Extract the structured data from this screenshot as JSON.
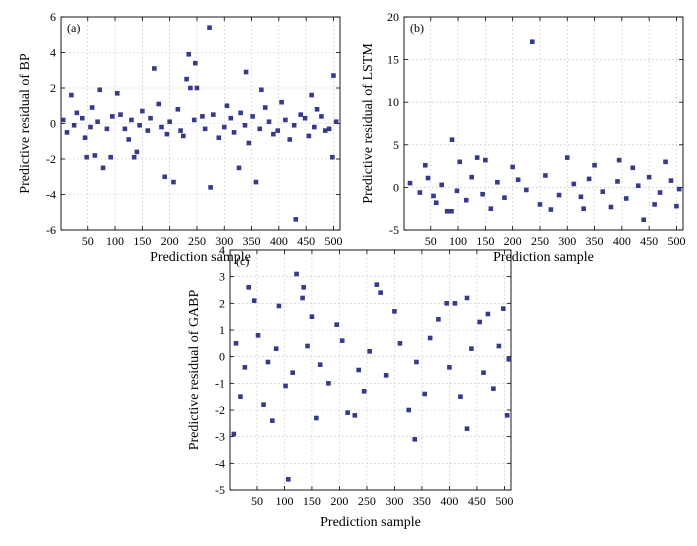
{
  "marker_color": "#353B8A",
  "chart_data": [
    {
      "id": "a",
      "type": "scatter",
      "panel_label": "(a)",
      "title": "",
      "xlabel": "Prediction sample",
      "ylabel": "Predictive residual of BP",
      "xlim": [
        1,
        512
      ],
      "ylim": [
        -6,
        6
      ],
      "xticks": [
        50,
        100,
        150,
        200,
        250,
        300,
        350,
        400,
        450,
        500
      ],
      "yticks": [
        -6,
        -4,
        -2,
        0,
        2,
        4,
        6
      ],
      "grid": true,
      "series": [
        {
          "name": "BP residual",
          "points": [
            [
              20,
              1.6
            ],
            [
              48,
              -1.9
            ],
            [
              63,
              -1.8
            ],
            [
              72,
              1.9
            ],
            [
              78,
              -2.5
            ],
            [
              92,
              -1.9
            ],
            [
              104,
              1.7
            ],
            [
              135,
              -1.9
            ],
            [
              140,
              -1.6
            ],
            [
              172,
              3.1
            ],
            [
              191,
              -3.0
            ],
            [
              207,
              -3.3
            ],
            [
              231,
              2.5
            ],
            [
              235,
              3.9
            ],
            [
              238,
              2.0
            ],
            [
              247,
              3.4
            ],
            [
              250,
              2.0
            ],
            [
              273,
              5.4
            ],
            [
              275,
              -3.6
            ],
            [
              327,
              -2.5
            ],
            [
              340,
              2.9
            ],
            [
              358,
              -3.3
            ],
            [
              368,
              1.9
            ],
            [
              431,
              -5.4
            ],
            [
              460,
              1.6
            ],
            [
              498,
              -1.9
            ],
            [
              500,
              2.7
            ],
            [
              12,
              -0.5
            ],
            [
              30,
              0.6
            ],
            [
              45,
              -0.8
            ],
            [
              58,
              0.9
            ],
            [
              85,
              -0.3
            ],
            [
              110,
              0.5
            ],
            [
              125,
              -0.9
            ],
            [
              150,
              0.7
            ],
            [
              160,
              -0.4
            ],
            [
              180,
              1.1
            ],
            [
              195,
              -0.6
            ],
            [
              215,
              0.8
            ],
            [
              225,
              -0.7
            ],
            [
              260,
              0.4
            ],
            [
              290,
              -0.8
            ],
            [
              305,
              1.0
            ],
            [
              318,
              -0.5
            ],
            [
              330,
              0.6
            ],
            [
              345,
              -1.1
            ],
            [
              375,
              0.9
            ],
            [
              390,
              -0.6
            ],
            [
              405,
              1.2
            ],
            [
              420,
              -0.9
            ],
            [
              440,
              0.5
            ],
            [
              455,
              -0.7
            ],
            [
              470,
              0.8
            ],
            [
              485,
              -0.4
            ],
            [
              5,
              0.2
            ],
            [
              25,
              -0.1
            ],
            [
              40,
              0.3
            ],
            [
              55,
              -0.2
            ],
            [
              68,
              0.1
            ],
            [
              95,
              0.4
            ],
            [
              118,
              -0.3
            ],
            [
              130,
              0.2
            ],
            [
              145,
              -0.1
            ],
            [
              165,
              0.3
            ],
            [
              185,
              -0.2
            ],
            [
              200,
              0.1
            ],
            [
              220,
              -0.4
            ],
            [
              245,
              0.2
            ],
            [
              265,
              -0.3
            ],
            [
              280,
              0.5
            ],
            [
              300,
              -0.2
            ],
            [
              312,
              0.3
            ],
            [
              338,
              -0.1
            ],
            [
              352,
              0.4
            ],
            [
              365,
              -0.3
            ],
            [
              382,
              0.1
            ],
            [
              398,
              -0.4
            ],
            [
              412,
              0.2
            ],
            [
              428,
              -0.1
            ],
            [
              448,
              0.3
            ],
            [
              465,
              -0.2
            ],
            [
              478,
              0.4
            ],
            [
              492,
              -0.3
            ],
            [
              505,
              0.1
            ]
          ]
        }
      ]
    },
    {
      "id": "b",
      "type": "scatter",
      "panel_label": "(b)",
      "title": "",
      "xlabel": "Prediction sample",
      "ylabel": "Predictive residual of LSTM",
      "xlim": [
        1,
        512
      ],
      "ylim": [
        -5,
        20
      ],
      "xticks": [
        50,
        100,
        150,
        200,
        250,
        300,
        350,
        400,
        450,
        500
      ],
      "yticks": [
        -5,
        0,
        5,
        10,
        15,
        20
      ],
      "grid": true,
      "series": [
        {
          "name": "LSTM residual",
          "points": [
            [
              236,
              17.1
            ],
            [
              89,
              5.6
            ],
            [
              103,
              3.0
            ],
            [
              135,
              3.5
            ],
            [
              150,
              3.2
            ],
            [
              300,
              3.5
            ],
            [
              395,
              3.2
            ],
            [
              440,
              -3.8
            ],
            [
              80,
              -2.8
            ],
            [
              88,
              -2.8
            ],
            [
              160,
              -2.5
            ],
            [
              270,
              -2.6
            ],
            [
              330,
              -2.5
            ],
            [
              480,
              3.0
            ],
            [
              500,
              -2.2
            ],
            [
              40,
              2.6
            ],
            [
              60,
              -1.8
            ],
            [
              115,
              -1.5
            ],
            [
              200,
              2.4
            ],
            [
              250,
              -2.0
            ],
            [
              350,
              2.6
            ],
            [
              380,
              -2.3
            ],
            [
              420,
              2.3
            ],
            [
              460,
              -2.0
            ],
            [
              12,
              0.5
            ],
            [
              30,
              -0.6
            ],
            [
              45,
              1.1
            ],
            [
              55,
              -1.0
            ],
            [
              70,
              0.3
            ],
            [
              98,
              -0.4
            ],
            [
              125,
              1.2
            ],
            [
              145,
              -0.8
            ],
            [
              172,
              0.6
            ],
            [
              185,
              -1.2
            ],
            [
              210,
              0.9
            ],
            [
              225,
              -0.3
            ],
            [
              260,
              1.4
            ],
            [
              285,
              -0.9
            ],
            [
              312,
              0.4
            ],
            [
              325,
              -1.1
            ],
            [
              340,
              1.0
            ],
            [
              365,
              -0.5
            ],
            [
              392,
              0.7
            ],
            [
              408,
              -1.3
            ],
            [
              430,
              0.2
            ],
            [
              450,
              1.2
            ],
            [
              470,
              -0.6
            ],
            [
              490,
              0.8
            ],
            [
              505,
              -0.2
            ]
          ]
        }
      ]
    },
    {
      "id": "c",
      "type": "scatter",
      "panel_label": "(c)",
      "title": "",
      "xlabel": "Prediction sample",
      "ylabel": "Predictive residual of GABP",
      "xlim": [
        1,
        512
      ],
      "ylim": [
        -5,
        4
      ],
      "xticks": [
        50,
        100,
        150,
        200,
        250,
        300,
        350,
        400,
        450,
        500
      ],
      "yticks": [
        -5,
        -4,
        -3,
        -2,
        -1,
        0,
        1,
        2,
        3,
        4
      ],
      "grid": true,
      "series": [
        {
          "name": "GABP residual",
          "points": [
            [
              8,
              -2.9
            ],
            [
              35,
              2.6
            ],
            [
              45,
              2.1
            ],
            [
              78,
              -2.4
            ],
            [
              107,
              -4.6
            ],
            [
              122,
              3.1
            ],
            [
              135,
              2.6
            ],
            [
              133,
              2.2
            ],
            [
              158,
              -2.3
            ],
            [
              268,
              2.7
            ],
            [
              275,
              2.4
            ],
            [
              337,
              -3.1
            ],
            [
              432,
              2.2
            ],
            [
              432,
              -2.7
            ],
            [
              505,
              -2.2
            ],
            [
              498,
              1.8
            ],
            [
              215,
              -2.1
            ],
            [
              228,
              -2.2
            ],
            [
              326,
              -2.0
            ],
            [
              395,
              2.0
            ],
            [
              410,
              2.0
            ],
            [
              470,
              1.6
            ],
            [
              20,
              -1.5
            ],
            [
              62,
              -1.8
            ],
            [
              90,
              1.9
            ],
            [
              102,
              -1.1
            ],
            [
              150,
              1.5
            ],
            [
              180,
              -1.0
            ],
            [
              195,
              1.2
            ],
            [
              245,
              -1.3
            ],
            [
              300,
              1.7
            ],
            [
              355,
              -1.4
            ],
            [
              380,
              1.4
            ],
            [
              420,
              -1.5
            ],
            [
              455,
              1.3
            ],
            [
              480,
              -1.2
            ],
            [
              12,
              0.5
            ],
            [
              28,
              -0.4
            ],
            [
              52,
              0.8
            ],
            [
              70,
              -0.2
            ],
            [
              85,
              0.3
            ],
            [
              115,
              -0.6
            ],
            [
              142,
              0.4
            ],
            [
              165,
              -0.3
            ],
            [
              205,
              0.6
            ],
            [
              235,
              -0.5
            ],
            [
              255,
              0.2
            ],
            [
              285,
              -0.7
            ],
            [
              310,
              0.5
            ],
            [
              340,
              -0.2
            ],
            [
              365,
              0.7
            ],
            [
              400,
              -0.4
            ],
            [
              440,
              0.3
            ],
            [
              462,
              -0.6
            ],
            [
              490,
              0.4
            ],
            [
              508,
              -0.1
            ]
          ]
        }
      ]
    }
  ]
}
